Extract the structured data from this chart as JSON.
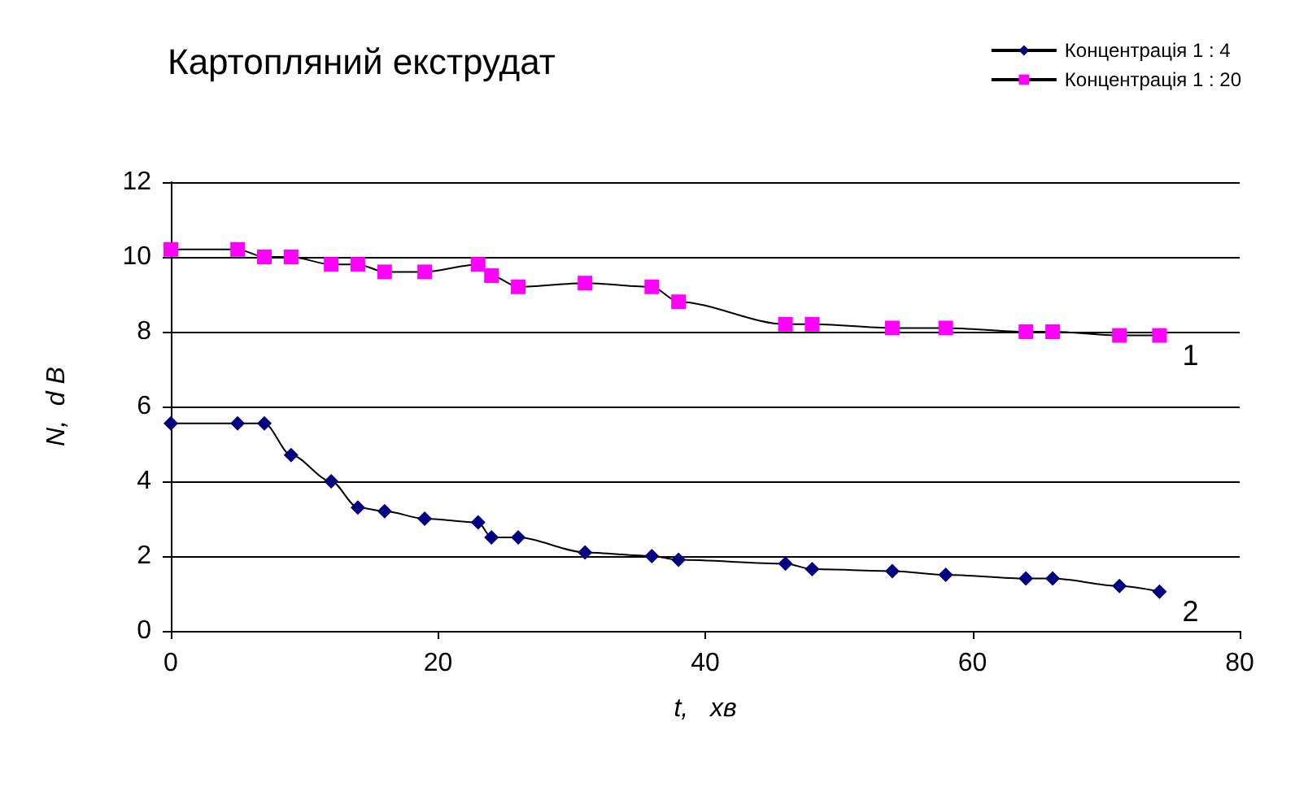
{
  "chart_data": {
    "type": "line",
    "title": "Картопляний екструдат",
    "xlabel": "t,   хв",
    "ylabel": "N,  d B",
    "xlim": [
      0,
      80
    ],
    "xticks": [
      0,
      20,
      40,
      60,
      80
    ],
    "ylim": [
      0,
      12
    ],
    "yticks": [
      0,
      2,
      4,
      6,
      8,
      10,
      12
    ],
    "grid": "y",
    "legend": "top right",
    "line_style": "solid",
    "series": [
      {
        "name": "Концентрація 1 : 4",
        "color": "#000080",
        "marker": "diamond",
        "x": [
          0,
          5,
          7,
          9,
          12,
          14,
          16,
          19,
          23,
          24,
          26,
          31,
          36,
          38,
          46,
          48,
          54,
          58,
          64,
          66,
          71,
          74
        ],
        "values": [
          5.55,
          5.55,
          5.55,
          4.7,
          4.0,
          3.3,
          3.2,
          3.0,
          2.9,
          2.5,
          2.5,
          2.1,
          2.0,
          1.9,
          1.8,
          1.65,
          1.6,
          1.5,
          1.4,
          1.4,
          1.2,
          1.05
        ]
      },
      {
        "name": "Концентрація 1 : 20",
        "color": "#ff00ff",
        "marker": "square",
        "x": [
          0,
          5,
          7,
          9,
          12,
          14,
          16,
          19,
          23,
          24,
          26,
          31,
          36,
          38,
          46,
          48,
          54,
          58,
          64,
          66,
          71,
          74
        ],
        "values": [
          10.2,
          10.2,
          10.0,
          10.0,
          9.8,
          9.8,
          9.6,
          9.6,
          9.8,
          9.5,
          9.2,
          9.3,
          9.2,
          8.8,
          8.2,
          8.2,
          8.1,
          8.1,
          8.0,
          8.0,
          7.9,
          7.9
        ]
      }
    ],
    "annotations": [
      {
        "text": "1",
        "x": 74,
        "y": 7.9
      },
      {
        "text": "2",
        "x": 74,
        "y": 1.05
      }
    ]
  }
}
